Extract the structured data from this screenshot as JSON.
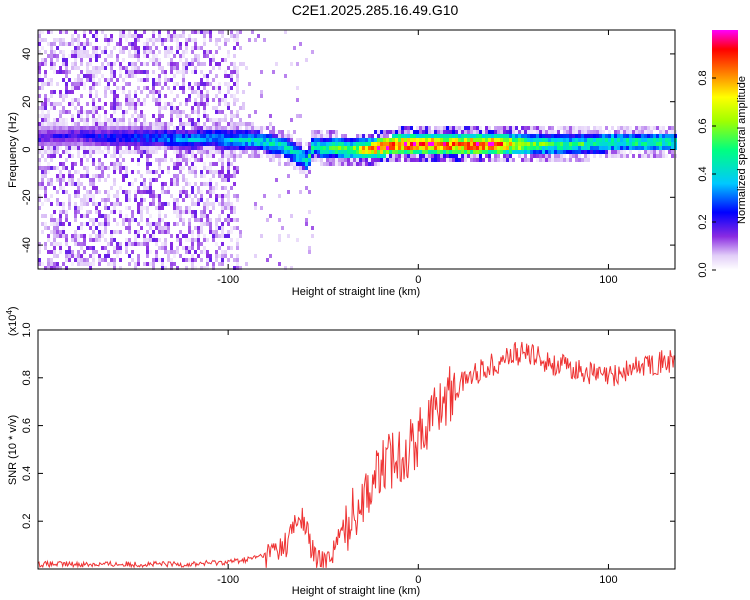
{
  "figure_title": "C2E1.2025.285.16.49.G10",
  "chart_data": [
    {
      "type": "heatmap",
      "title": "C2E1.2025.285.16.49.G10",
      "xlabel": "Height of straight line (km)",
      "ylabel": "Frequency (Hz)",
      "xlim": [
        -200,
        135
      ],
      "ylim": [
        -50,
        50
      ],
      "x_ticks": [
        -100,
        0,
        100
      ],
      "x_tick_labels": [
        "-100",
        "0",
        "100"
      ],
      "y_ticks": [
        40,
        20,
        0,
        -20,
        -40
      ],
      "y_tick_labels": [
        "40",
        "20",
        "0",
        "-20",
        "-40"
      ],
      "colorbar": {
        "label": "Normalized spectral amplitude",
        "range": [
          0,
          1
        ],
        "ticks": [
          0,
          0.2,
          0.4,
          0.6,
          0.8
        ],
        "tick_labels": [
          "0.0",
          "0.2",
          "0.4",
          "0.6",
          "0.8"
        ],
        "colors": [
          "#ffffff",
          "#e2cef8",
          "#8a2be2",
          "#0000ff",
          "#00c8ff",
          "#00ff80",
          "#a0ff00",
          "#ffff00",
          "#ff8000",
          "#ff0000",
          "#ff00ff"
        ]
      },
      "ridge": {
        "x": [
          -200,
          -180,
          -160,
          -140,
          -120,
          -110,
          -100,
          -90,
          -80,
          -70,
          -62,
          -58,
          -55,
          -50,
          -45,
          -40,
          -35,
          -30,
          -25,
          -20,
          -10,
          0,
          20,
          40,
          60,
          80,
          100,
          120,
          135
        ],
        "freq": [
          5,
          6,
          5,
          5,
          4,
          5,
          4,
          4,
          3,
          1,
          -3,
          -5,
          2,
          0,
          1,
          0,
          0,
          0,
          0,
          1,
          2,
          2,
          2,
          2,
          2,
          2,
          3,
          3,
          3
        ],
        "amplitude": [
          0.2,
          0.2,
          0.25,
          0.3,
          0.35,
          0.35,
          0.4,
          0.4,
          0.45,
          0.45,
          0.45,
          0.5,
          0.45,
          0.5,
          0.55,
          0.6,
          0.6,
          0.75,
          0.85,
          0.95,
          0.95,
          0.95,
          0.95,
          0.95,
          0.6,
          0.5,
          0.5,
          0.5,
          0.5
        ]
      }
    },
    {
      "type": "line",
      "xlabel": "Height of straight line (km)",
      "ylabel": "SNR (10 * v/v)",
      "y_scale_label": "(x10",
      "y_scale_exponent": "4",
      "y_scale_suffix": ")",
      "xlim": [
        -200,
        135
      ],
      "ylim": [
        0,
        1.0
      ],
      "x_ticks": [
        -100,
        0,
        100
      ],
      "x_tick_labels": [
        "-100",
        "0",
        "100"
      ],
      "y_ticks": [
        0.2,
        0.4,
        0.6,
        0.8,
        1.0
      ],
      "y_tick_labels": [
        "0.2",
        "0.4",
        "0.6",
        "0.8",
        "1.0"
      ],
      "series": [
        {
          "name": "SNR",
          "color": "#ee3333",
          "x": [
            -200,
            -180,
            -160,
            -140,
            -120,
            -100,
            -90,
            -80,
            -75,
            -70,
            -65,
            -62,
            -58,
            -55,
            -50,
            -45,
            -40,
            -35,
            -30,
            -25,
            -20,
            -15,
            -10,
            -5,
            0,
            5,
            10,
            15,
            20,
            25,
            30,
            40,
            50,
            60,
            70,
            80,
            90,
            100,
            110,
            120,
            135
          ],
          "y": [
            0.02,
            0.02,
            0.02,
            0.02,
            0.02,
            0.03,
            0.04,
            0.06,
            0.08,
            0.1,
            0.18,
            0.22,
            0.15,
            0.05,
            0.02,
            0.08,
            0.15,
            0.22,
            0.3,
            0.35,
            0.42,
            0.45,
            0.48,
            0.5,
            0.55,
            0.62,
            0.68,
            0.72,
            0.75,
            0.8,
            0.82,
            0.86,
            0.9,
            0.9,
            0.86,
            0.84,
            0.82,
            0.8,
            0.83,
            0.86,
            0.87
          ]
        }
      ]
    }
  ]
}
